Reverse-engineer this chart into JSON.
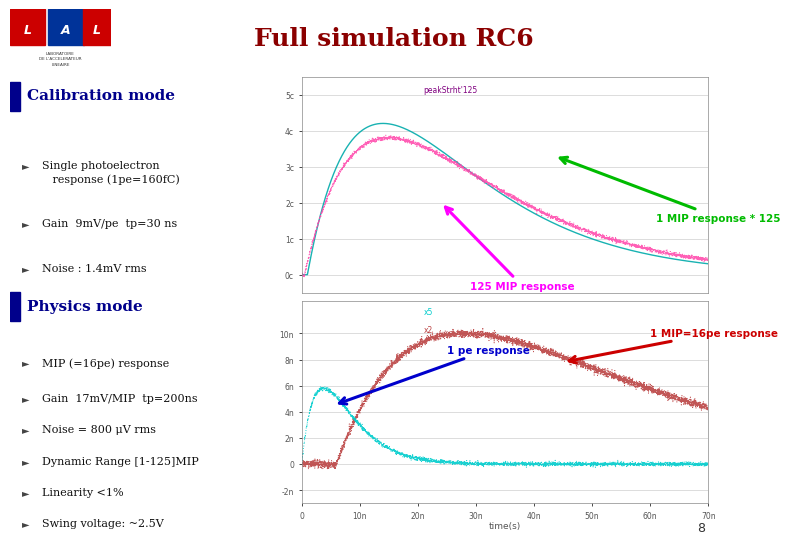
{
  "title": "Full simulation RC6",
  "title_color": "#8B0000",
  "title_fontsize": 18,
  "bg_color": "#FFFFFF",
  "separator_color": "#CC0000",
  "cal_section_title": "Calibration mode",
  "cal_bullets": [
    "Single photoelectron\n   response (1pe=160fC)",
    "Gain  9mV/pe  tp=30 ns",
    "Noise : 1.4mV rms"
  ],
  "phys_section_title": "Physics mode",
  "phys_bullets": [
    "MIP (=16pe) response",
    "Gain  17mV/MIP  tp=200ns",
    "Noise = 800 μV rms",
    "Dynamic Range [1-125]MIP",
    "Linearity <1%",
    "Swing voltage: ~2.5V"
  ],
  "upper_plot": {
    "curve1_color": "#00AAAA",
    "curve2_color": "#FF44AA",
    "arrow1_text": "1 MIP response * 125",
    "arrow1_color": "#00BB00",
    "arrow2_text": "125 MIP response",
    "arrow2_color": "#FF00FF",
    "legend_label": "peakStrht'125"
  },
  "lower_plot": {
    "curve1_color": "#00CCCC",
    "curve2_color": "#BB4444",
    "arrow1_text": "1 MIP=16pe response",
    "arrow1_color": "#CC0000",
    "arrow2_text": "1 pe response",
    "arrow2_color": "#0000CC",
    "legend_x5": "x5",
    "legend_x2": "x2"
  },
  "page_number": "8"
}
